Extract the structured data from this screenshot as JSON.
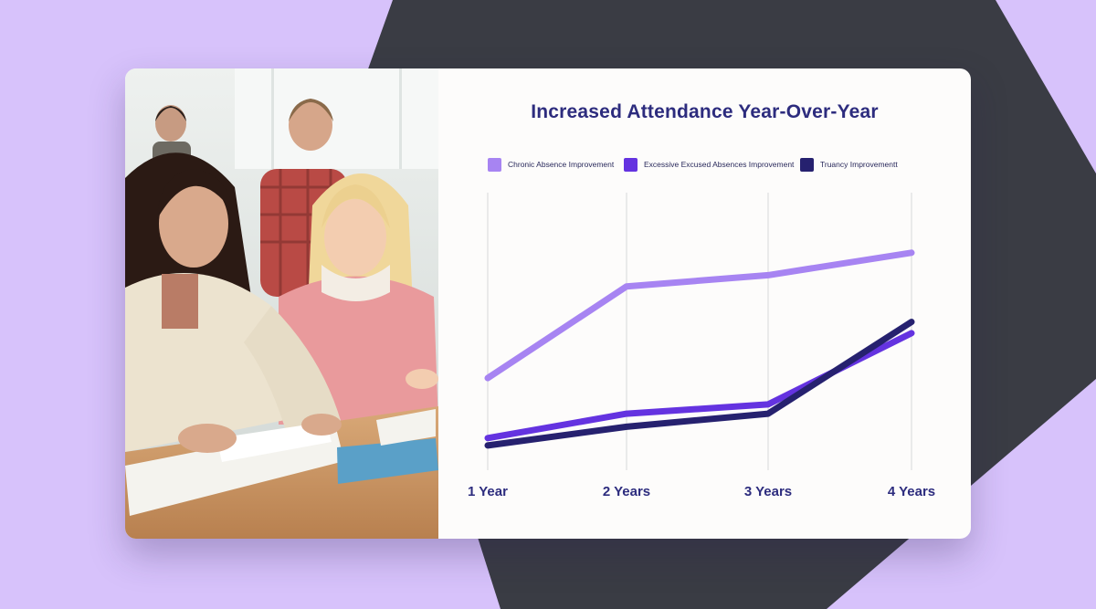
{
  "colors": {
    "background": "#d7c2fb",
    "dark_shape": "#3a3c44",
    "card": "#fdfcfb",
    "title": "#2d2c7e",
    "grid": "#d8d8d8",
    "tick_label": "#2d2c7e"
  },
  "photo": {
    "description_icon": "students-studying-photo"
  },
  "chart_data": {
    "type": "line",
    "title": "Increased Attendance Year-Over-Year",
    "xlabel": "",
    "ylabel": "",
    "categories": [
      "1 Year",
      "2 Years",
      "3 Years",
      "4 Years"
    ],
    "ylim": [
      0,
      100
    ],
    "grid": "vertical",
    "legend_position": "top",
    "series": [
      {
        "name": "Chronic Absence Improvement",
        "color": "#a784f2",
        "values": [
          37,
          86,
          92,
          104
        ]
      },
      {
        "name": "Excessive Excused Absences Improvement",
        "color": "#6433e0",
        "values": [
          5,
          18,
          23,
          61
        ]
      },
      {
        "name": "Truancy Improvementt",
        "color": "#26216f",
        "values": [
          1,
          11,
          18,
          67
        ]
      }
    ]
  }
}
